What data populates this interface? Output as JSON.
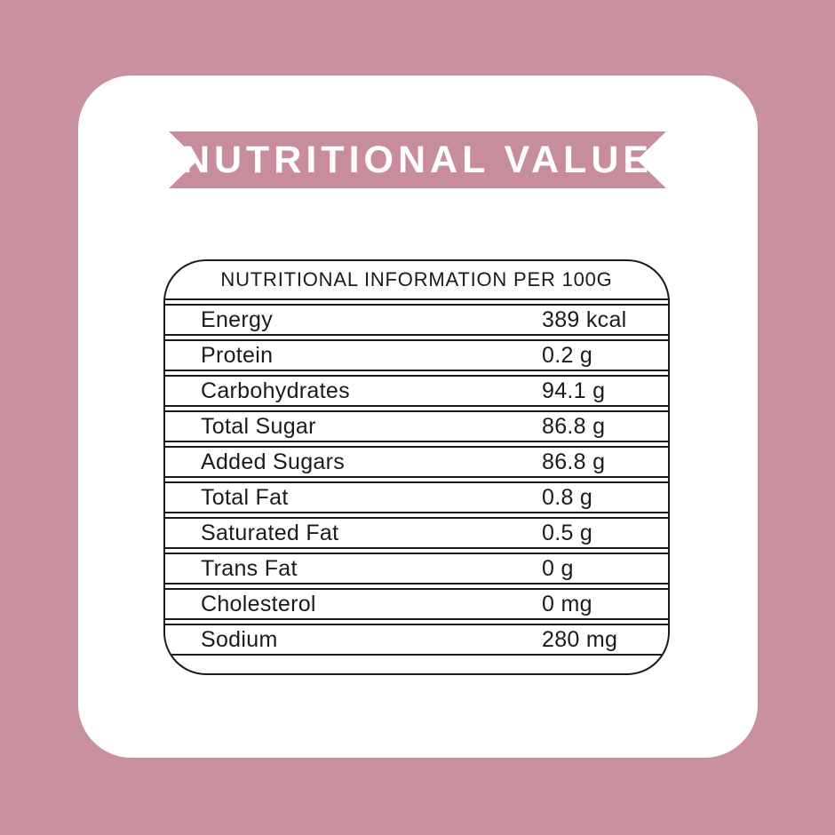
{
  "page": {
    "background_color": "#c9919f",
    "card_color": "#ffffff",
    "ink_color": "#1b1b1b"
  },
  "banner": {
    "label": "NUTRITIONAL VALUE",
    "color": "#c78d9c",
    "text_color": "#ffffff"
  },
  "table": {
    "header": "NUTRITIONAL INFORMATION PER 100G",
    "rows": [
      {
        "label": "Energy",
        "value": "389 kcal"
      },
      {
        "label": "Protein",
        "value": "0.2 g"
      },
      {
        "label": "Carbohydrates",
        "value": "94.1 g"
      },
      {
        "label": "Total Sugar",
        "value": "86.8 g"
      },
      {
        "label": "Added Sugars",
        "value": "86.8 g"
      },
      {
        "label": "Total Fat",
        "value": "0.8 g"
      },
      {
        "label": "Saturated Fat",
        "value": "0.5 g"
      },
      {
        "label": "Trans Fat",
        "value": "0 g"
      },
      {
        "label": "Cholesterol",
        "value": "0 mg"
      },
      {
        "label": "Sodium",
        "value": "280 mg"
      }
    ]
  }
}
